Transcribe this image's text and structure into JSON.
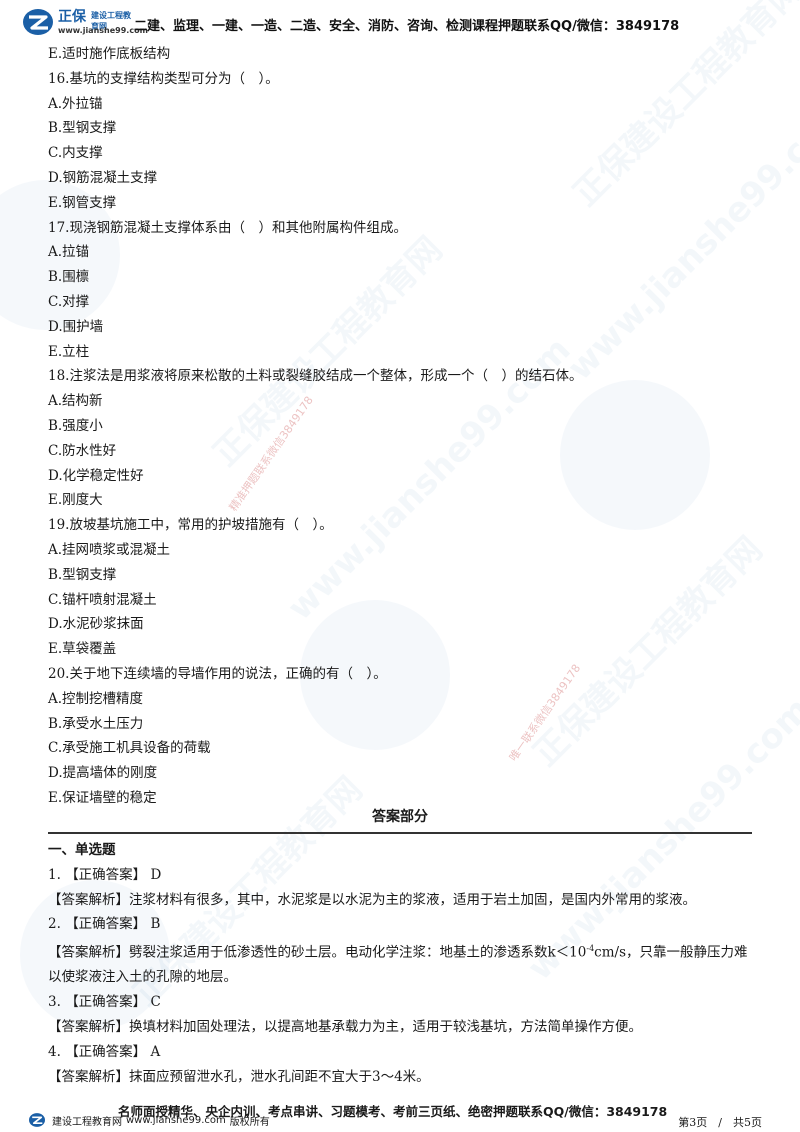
{
  "header": {
    "logo_name": "正保",
    "logo_subtitle": "建设工程教育网",
    "logo_url": "www.jianshe99.com",
    "text": "二建、监理、一建、一造、二造、安全、消防、咨询、检测课程押题联系QQ/微信：3849178"
  },
  "watermark": {
    "brand": "正保建设工程教育网",
    "url": "www.jianshe99.com",
    "stamp_1": "精准押题联系微信3849178",
    "stamp_2": "唯一联系微信3849178"
  },
  "questions": [
    {
      "text": "E.适时施作底板结构"
    },
    {
      "text": "16.基坑的支撑结构类型可分为（　）。"
    },
    {
      "text": "A.外拉锚"
    },
    {
      "text": "B.型钢支撑"
    },
    {
      "text": "C.内支撑"
    },
    {
      "text": "D.钢筋混凝土支撑"
    },
    {
      "text": "E.钢管支撑"
    },
    {
      "text": "17.现浇钢筋混凝土支撑体系由（　）和其他附属构件组成。"
    },
    {
      "text": "A.拉锚"
    },
    {
      "text": "B.围檩"
    },
    {
      "text": "C.对撑"
    },
    {
      "text": "D.围护墙"
    },
    {
      "text": "E.立柱"
    },
    {
      "text": "18.注浆法是用浆液将原来松散的土料或裂缝胶结成一个整体，形成一个（　）的结石体。"
    },
    {
      "text": "A.结构新"
    },
    {
      "text": "B.强度小"
    },
    {
      "text": "C.防水性好"
    },
    {
      "text": "D.化学稳定性好"
    },
    {
      "text": "E.刚度大"
    },
    {
      "text": "19.放坡基坑施工中，常用的护坡措施有（　）。"
    },
    {
      "text": "A.挂网喷浆或混凝土"
    },
    {
      "text": "B.型钢支撑"
    },
    {
      "text": "C.锚杆喷射混凝土"
    },
    {
      "text": "D.水泥砂浆抹面"
    },
    {
      "text": "E.草袋覆盖"
    },
    {
      "text": "20.关于地下连续墙的导墙作用的说法，正确的有（　）。"
    },
    {
      "text": "A.控制挖槽精度"
    },
    {
      "text": "B.承受水土压力"
    },
    {
      "text": "C.承受施工机具设备的荷载"
    },
    {
      "text": "D.提高墙体的刚度"
    },
    {
      "text": "E.保证墙壁的稳定"
    }
  ],
  "answers": {
    "title": "答案部分",
    "section": "一、单选题",
    "items": [
      {
        "num": "1.",
        "label": "【正确答案】",
        "answer": "D",
        "analysis_label": "【答案解析】",
        "analysis": "注浆材料有很多，其中，水泥浆是以水泥为主的浆液，适用于岩土加固，是国内外常用的浆液。"
      },
      {
        "num": "2.",
        "label": "【正确答案】",
        "answer": "B",
        "analysis_label": "【答案解析】",
        "analysis_pre": "劈裂注浆适用于低渗透性的砂土层。电动化学注浆：地基土的渗透系数k＜10",
        "analysis_sup": "-4",
        "analysis_post": "cm/s，只靠一般静压力难以使浆液注入土的孔隙的地层。"
      },
      {
        "num": "3.",
        "label": "【正确答案】",
        "answer": "C",
        "analysis_label": "【答案解析】",
        "analysis": "换填材料加固处理法，以提高地基承载力为主，适用于较浅基坑，方法简单操作方便。"
      },
      {
        "num": "4.",
        "label": "【正确答案】",
        "answer": "A",
        "analysis_label": "【答案解析】",
        "analysis": "抹面应预留泄水孔，泄水孔间距不宜大于3～4米。"
      }
    ]
  },
  "footer": {
    "center_text": "名师面授精华、央企内训、考点串讲、习题模考、考前三页纸、绝密押题联系QQ/微信：3849178",
    "left_brand": "建设工程教育网",
    "left_url": "www.jianshe99.com",
    "left_rights": "版权所有",
    "page": "第3页　/　共5页"
  },
  "colors": {
    "brand_blue": "#1b5fa6",
    "text": "#1a1a1a",
    "stamp_red": "#c85050"
  }
}
